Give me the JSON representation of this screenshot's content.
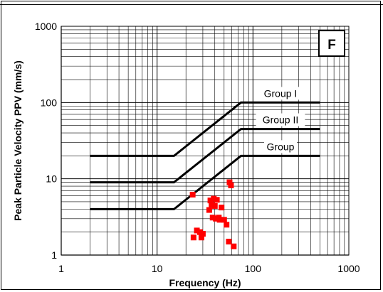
{
  "chart_data": {
    "type": "scatter",
    "panel_label": "F",
    "xlabel": "Frequency (Hz)",
    "ylabel": "Peak Particle Velocity PPV (mm/s)",
    "x_scale": "log",
    "y_scale": "log",
    "xlim": [
      1,
      1000
    ],
    "ylim": [
      1,
      1000
    ],
    "x_ticks": [
      "1",
      "10",
      "100",
      "1000"
    ],
    "y_ticks": [
      "1",
      "10",
      "100",
      "1000"
    ],
    "grid": true,
    "point_color": "#ff0000",
    "line_color": "#000000",
    "limit_curves": [
      {
        "label": "Group I",
        "points": [
          [
            2,
            20
          ],
          [
            15,
            20
          ],
          [
            75,
            100
          ],
          [
            500,
            100
          ]
        ]
      },
      {
        "label": "Group II",
        "points": [
          [
            2,
            9
          ],
          [
            15,
            9
          ],
          [
            75,
            45
          ],
          [
            500,
            45
          ]
        ]
      },
      {
        "label": "Group",
        "points": [
          [
            2,
            4
          ],
          [
            15,
            4
          ],
          [
            75,
            20
          ],
          [
            500,
            20
          ]
        ]
      }
    ],
    "points": [
      {
        "x": 23.5,
        "y": 6.2
      },
      {
        "x": 24,
        "y": 1.7
      },
      {
        "x": 26,
        "y": 2.1
      },
      {
        "x": 28,
        "y": 2.0
      },
      {
        "x": 29,
        "y": 1.7
      },
      {
        "x": 30,
        "y": 1.9
      },
      {
        "x": 35,
        "y": 3.9
      },
      {
        "x": 36,
        "y": 5.2
      },
      {
        "x": 37,
        "y": 4.6
      },
      {
        "x": 38,
        "y": 3.1
      },
      {
        "x": 39,
        "y": 5.5
      },
      {
        "x": 40,
        "y": 4.4
      },
      {
        "x": 41,
        "y": 3.0
      },
      {
        "x": 42,
        "y": 5.3
      },
      {
        "x": 44,
        "y": 3.1
      },
      {
        "x": 45,
        "y": 2.9
      },
      {
        "x": 47,
        "y": 4.2
      },
      {
        "x": 50,
        "y": 2.9
      },
      {
        "x": 53,
        "y": 2.5
      },
      {
        "x": 56,
        "y": 1.5
      },
      {
        "x": 57,
        "y": 9.0
      },
      {
        "x": 59,
        "y": 8.2
      },
      {
        "x": 63,
        "y": 1.3
      }
    ]
  }
}
